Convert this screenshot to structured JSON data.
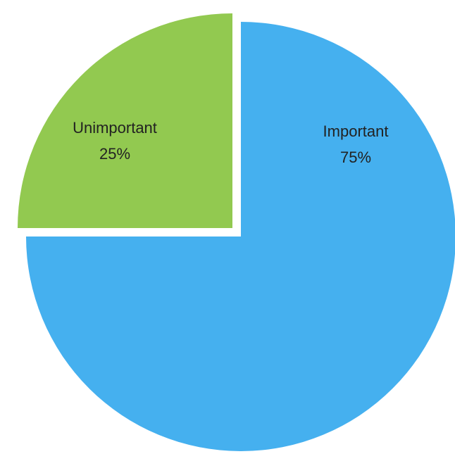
{
  "chart_data": {
    "type": "pie",
    "title": "",
    "slices": [
      {
        "label": "Important",
        "value": 75,
        "percent_label": "75%",
        "color": "#45b0ef"
      },
      {
        "label": "Unimportant",
        "value": 25,
        "percent_label": "25%",
        "color": "#92c950"
      }
    ],
    "exploded_slice": "Unimportant",
    "start": "top, clockwise",
    "legend": "none",
    "data_labels": "inside, category name and percentage"
  }
}
